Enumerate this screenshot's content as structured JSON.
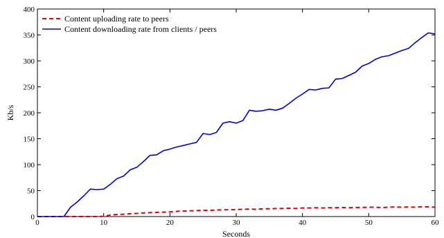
{
  "chart_data": {
    "type": "line",
    "title": "",
    "xlabel": "Seconds",
    "ylabel": "Kb/s",
    "xlim": [
      0,
      60
    ],
    "ylim": [
      0,
      400
    ],
    "xticks": [
      0,
      10,
      20,
      30,
      40,
      50,
      60
    ],
    "yticks": [
      0,
      50,
      100,
      150,
      200,
      250,
      300,
      350,
      400
    ],
    "grid": false,
    "legend_position": "top-left",
    "series": [
      {
        "name": "Content uploading rate to peers",
        "color": "#e00000",
        "style": "dashed",
        "x": [
          0,
          4,
          5,
          6,
          7,
          8,
          9,
          10,
          11,
          12,
          13,
          14,
          15,
          16,
          17,
          18,
          19,
          20,
          21,
          22,
          23,
          24,
          25,
          26,
          27,
          28,
          29,
          30,
          31,
          32,
          33,
          34,
          35,
          36,
          37,
          38,
          39,
          40,
          41,
          42,
          43,
          44,
          45,
          46,
          47,
          48,
          49,
          50,
          51,
          52,
          53,
          54,
          55,
          56,
          57,
          58,
          59,
          60
        ],
        "values": [
          0,
          0,
          0,
          0,
          0,
          0,
          0,
          0.5,
          3,
          4,
          4.5,
          5.5,
          6,
          7,
          7.5,
          8,
          8.5,
          9,
          10,
          10.5,
          11,
          11.5,
          12,
          12,
          12.5,
          13,
          13,
          13.5,
          14,
          14.5,
          14,
          15,
          15,
          15.5,
          15.5,
          16,
          15.5,
          16.5,
          16.5,
          17,
          16.5,
          17,
          17,
          17.5,
          17,
          17.5,
          17.5,
          18,
          18,
          17.5,
          18,
          18.5,
          18,
          18.5,
          18,
          19,
          18.5,
          18
        ]
      },
      {
        "name": "Content downloading rate from clients / peers",
        "color": "#0000d0",
        "style": "solid",
        "x": [
          0,
          4,
          5,
          6,
          7,
          8,
          9,
          10,
          11,
          12,
          13,
          14,
          15,
          16,
          17,
          18,
          19,
          20,
          21,
          22,
          23,
          24,
          25,
          26,
          27,
          28,
          29,
          30,
          31,
          32,
          33,
          34,
          35,
          36,
          37,
          38,
          39,
          40,
          41,
          42,
          43,
          44,
          45,
          46,
          47,
          48,
          49,
          50,
          51,
          52,
          53,
          54,
          55,
          56,
          57,
          58,
          59,
          60
        ],
        "values": [
          0,
          0,
          18,
          28,
          40,
          53,
          52,
          53,
          62,
          73,
          78,
          90,
          95,
          106,
          118,
          119,
          127,
          130,
          134,
          137,
          140,
          143,
          160,
          158,
          162,
          180,
          183,
          180,
          185,
          205,
          203,
          204,
          207,
          205,
          209,
          218,
          228,
          236,
          245,
          244,
          247,
          248,
          265,
          266,
          272,
          278,
          290,
          295,
          303,
          308,
          310,
          315,
          320,
          324,
          335,
          345,
          354,
          352
        ]
      }
    ]
  }
}
